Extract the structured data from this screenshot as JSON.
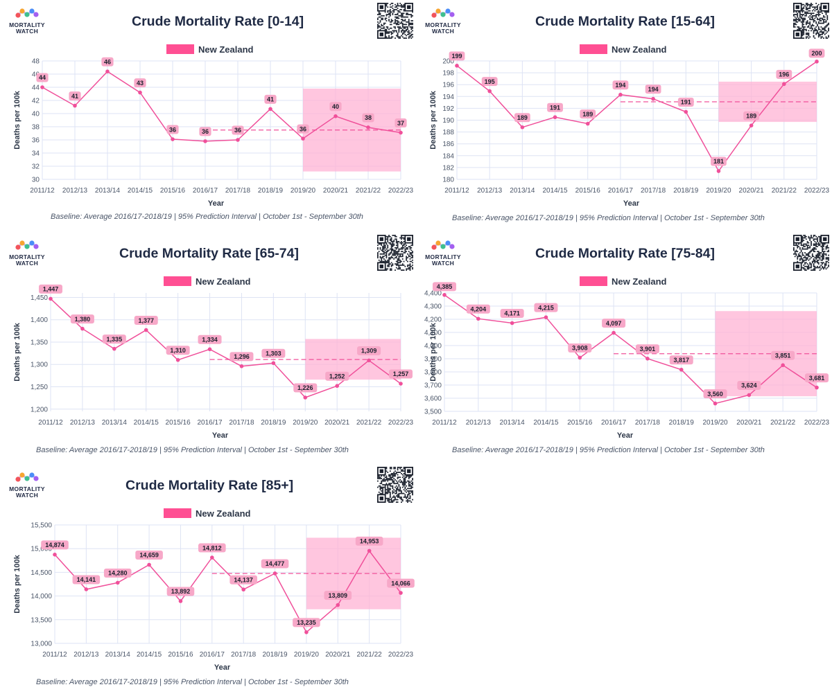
{
  "branding": {
    "logo_text_line1": "MORTALITY",
    "logo_text_line2": "WATCH"
  },
  "colors": {
    "series": "#f0509a",
    "band": "#ffb3d4",
    "label_box": "#f7a8c8",
    "grid": "#dde3f4"
  },
  "chart_data": [
    {
      "type": "line",
      "title": "Crude Mortality Rate [0-14]",
      "legend": "New Zealand",
      "xlabel": "Year",
      "ylabel": "Deaths per 100k",
      "categories": [
        "2011/12",
        "2012/13",
        "2013/14",
        "2014/15",
        "2015/16",
        "2016/17",
        "2017/18",
        "2018/19",
        "2019/20",
        "2020/21",
        "2021/22",
        "2022/23"
      ],
      "values": [
        44,
        41,
        46,
        43,
        36,
        36,
        36,
        41,
        36,
        40,
        38,
        37
      ],
      "value_labels": [
        "44",
        "41",
        "46",
        "43",
        "36",
        "36",
        "36",
        "41",
        "36",
        "40",
        "38",
        "37"
      ],
      "plotted": [
        44,
        41.2,
        46.4,
        43.2,
        36.1,
        35.8,
        36,
        40.7,
        36.2,
        39.6,
        37.9,
        37.1
      ],
      "yticks": [
        30,
        32,
        34,
        36,
        38,
        40,
        42,
        44,
        46,
        48
      ],
      "ytick_labels": [
        "30",
        "32",
        "34",
        "36",
        "38",
        "40",
        "42",
        "44",
        "46",
        "48"
      ],
      "ylim": [
        30,
        48
      ],
      "baseline": {
        "value": 37.5,
        "from": "2016/17",
        "to": "2022/23"
      },
      "prediction_interval": {
        "low": 31.2,
        "high": 43.8,
        "from": "2019/20",
        "to": "2022/23"
      },
      "footnote": "Baseline: Average 2016/17-2018/19 | 95% Prediction Interval | October 1st - September 30th"
    },
    {
      "type": "line",
      "title": "Crude Mortality Rate [15-64]",
      "legend": "New Zealand",
      "xlabel": "Year",
      "ylabel": "Deaths per 100k",
      "categories": [
        "2011/12",
        "2012/13",
        "2013/14",
        "2014/15",
        "2015/16",
        "2016/17",
        "2017/18",
        "2018/19",
        "2019/20",
        "2020/21",
        "2021/22",
        "2022/23"
      ],
      "values": [
        199,
        195,
        189,
        191,
        189,
        194,
        194,
        191,
        181,
        189,
        196,
        200
      ],
      "value_labels": [
        "199",
        "195",
        "189",
        "191",
        "189",
        "194",
        "194",
        "191",
        "181",
        "189",
        "196",
        "200"
      ],
      "plotted": [
        199.2,
        194.9,
        188.8,
        190.5,
        189.4,
        194.3,
        193.6,
        191.4,
        181.4,
        189.1,
        196.1,
        199.9
      ],
      "yticks": [
        180,
        182,
        184,
        186,
        188,
        190,
        192,
        194,
        196,
        198,
        200
      ],
      "ytick_labels": [
        "180",
        "182",
        "184",
        "186",
        "188",
        "190",
        "192",
        "194",
        "196",
        "198",
        "200"
      ],
      "ylim": [
        180,
        200
      ],
      "baseline": {
        "value": 193.1,
        "from": "2016/17",
        "to": "2022/23"
      },
      "prediction_interval": {
        "low": 189.7,
        "high": 196.5,
        "from": "2019/20",
        "to": "2022/23"
      },
      "footnote": "Baseline: Average 2016/17-2018/19 | 95% Prediction Interval | October 1st - September 30th"
    },
    {
      "type": "line",
      "title": "Crude Mortality Rate [65-74]",
      "legend": "New Zealand",
      "xlabel": "Year",
      "ylabel": "Deaths per 100k",
      "categories": [
        "2011/12",
        "2012/13",
        "2013/14",
        "2014/15",
        "2015/16",
        "2016/17",
        "2017/18",
        "2018/19",
        "2019/20",
        "2020/21",
        "2021/22",
        "2022/23"
      ],
      "values": [
        1447,
        1380,
        1335,
        1377,
        1310,
        1334,
        1296,
        1303,
        1226,
        1252,
        1309,
        1257
      ],
      "value_labels": [
        "1,447",
        "1,380",
        "1,335",
        "1,377",
        "1,310",
        "1,334",
        "1,296",
        "1,303",
        "1,226",
        "1,252",
        "1,309",
        "1,257"
      ],
      "plotted": [
        1447,
        1380,
        1335,
        1377,
        1310,
        1334,
        1296,
        1303,
        1226,
        1252,
        1309,
        1257
      ],
      "yticks": [
        1200,
        1250,
        1300,
        1350,
        1400,
        1450
      ],
      "ytick_labels": [
        "1,200",
        "1,250",
        "1,300",
        "1,350",
        "1,400",
        "1,450"
      ],
      "ylim": [
        1195,
        1460
      ],
      "baseline": {
        "value": 1311,
        "from": "2016/17",
        "to": "2022/23"
      },
      "prediction_interval": {
        "low": 1266,
        "high": 1357,
        "from": "2019/20",
        "to": "2022/23"
      },
      "footnote": "Baseline: Average 2016/17-2018/19 | 95% Prediction Interval | October 1st - September 30th"
    },
    {
      "type": "line",
      "title": "Crude Mortality Rate [75-84]",
      "legend": "New Zealand",
      "xlabel": "Year",
      "ylabel": "Deaths per 100k",
      "categories": [
        "2011/12",
        "2012/13",
        "2013/14",
        "2014/15",
        "2015/16",
        "2016/17",
        "2017/18",
        "2018/19",
        "2019/20",
        "2020/21",
        "2021/22",
        "2022/23"
      ],
      "values": [
        4385,
        4204,
        4171,
        4215,
        3908,
        4097,
        3901,
        3817,
        3560,
        3624,
        3851,
        3681
      ],
      "value_labels": [
        "4,385",
        "4,204",
        "4,171",
        "4,215",
        "3,908",
        "4,097",
        "3,901",
        "3,817",
        "3,560",
        "3,624",
        "3,851",
        "3,681"
      ],
      "plotted": [
        4385,
        4204,
        4171,
        4215,
        3908,
        4097,
        3901,
        3817,
        3560,
        3624,
        3851,
        3681
      ],
      "yticks": [
        3500,
        3600,
        3700,
        3800,
        3900,
        4000,
        4100,
        4200,
        4300,
        4400
      ],
      "ytick_labels": [
        "3,500",
        "3,600",
        "3,700",
        "3,800",
        "3,900",
        "4,000",
        "4,100",
        "4,200",
        "4,300",
        "4,400"
      ],
      "ylim": [
        3500,
        4400
      ],
      "baseline": {
        "value": 3938,
        "from": "2016/17",
        "to": "2022/23"
      },
      "prediction_interval": {
        "low": 3615,
        "high": 4262,
        "from": "2019/20",
        "to": "2022/23"
      },
      "footnote": "Baseline: Average 2016/17-2018/19 | 95% Prediction Interval | October 1st - September 30th"
    },
    {
      "type": "line",
      "title": "Crude Mortality Rate [85+]",
      "legend": "New Zealand",
      "xlabel": "Year",
      "ylabel": "Deaths per 100k",
      "categories": [
        "2011/12",
        "2012/13",
        "2013/14",
        "2014/15",
        "2015/16",
        "2016/17",
        "2017/18",
        "2018/19",
        "2019/20",
        "2020/21",
        "2021/22",
        "2022/23"
      ],
      "values": [
        14874,
        14141,
        14280,
        14659,
        13892,
        14812,
        14137,
        14477,
        13235,
        13809,
        14953,
        14066
      ],
      "value_labels": [
        "14,874",
        "14,141",
        "14,280",
        "14,659",
        "13,892",
        "14,812",
        "14,137",
        "14,477",
        "13,235",
        "13,809",
        "14,953",
        "14,066"
      ],
      "plotted": [
        14874,
        14141,
        14280,
        14659,
        13892,
        14812,
        14137,
        14477,
        13235,
        13809,
        14953,
        14066
      ],
      "yticks": [
        13000,
        13500,
        14000,
        14500,
        15000,
        15500
      ],
      "ytick_labels": [
        "13,000",
        "13,500",
        "14,000",
        "14,500",
        "15,000",
        "15,500"
      ],
      "ylim": [
        13000,
        15500
      ],
      "baseline": {
        "value": 14475,
        "from": "2016/17",
        "to": "2022/23"
      },
      "prediction_interval": {
        "low": 13720,
        "high": 15230,
        "from": "2019/20",
        "to": "2022/23"
      },
      "footnote": "Baseline: Average 2016/17-2018/19 | 95% Prediction Interval | October 1st - September 30th"
    }
  ]
}
